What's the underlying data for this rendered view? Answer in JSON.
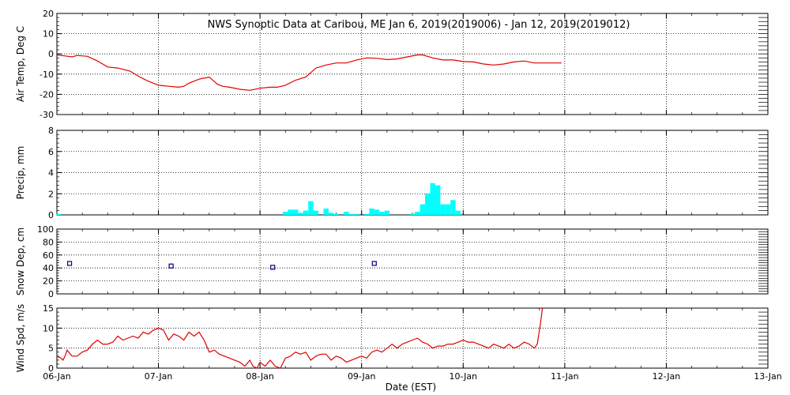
{
  "title": "NWS Synoptic Data at Caribou, ME   Jan  6, 2019(2019006) - Jan 12, 2019(2019012)",
  "xlabel": "Date (EST)",
  "colors": {
    "air_temp": "#e00000",
    "precip": "#00ffff",
    "snow": "#000080",
    "wind": "#e00000",
    "grid": "#000000"
  },
  "chart_data": [
    {
      "type": "line",
      "panel": "air_temp",
      "ylabel": "Air Temp, Deg C",
      "ylim": [
        -30,
        20
      ],
      "yticks": [
        20,
        10,
        0,
        -10,
        -20,
        -30
      ],
      "xlim": [
        0,
        7
      ],
      "xtick_labels": [
        "06-Jan",
        "07-Jan",
        "08-Jan",
        "09-Jan",
        "10-Jan",
        "11-Jan",
        "12-Jan",
        "13-Jan"
      ],
      "grid": true,
      "x": [
        0.0,
        0.08,
        0.15,
        0.2,
        0.3,
        0.4,
        0.5,
        0.6,
        0.72,
        0.82,
        0.9,
        1.0,
        1.1,
        1.2,
        1.25,
        1.3,
        1.4,
        1.5,
        1.58,
        1.63,
        1.7,
        1.8,
        1.9,
        2.0,
        2.1,
        2.17,
        2.25,
        2.35,
        2.45,
        2.55,
        2.65,
        2.75,
        2.85,
        2.95,
        3.05,
        3.15,
        3.25,
        3.35,
        3.45,
        3.55,
        3.6,
        3.7,
        3.8,
        3.9,
        4.0,
        4.1,
        4.2,
        4.3,
        4.4,
        4.5,
        4.6,
        4.7,
        4.8,
        4.9,
        4.97
      ],
      "values": [
        -0.5,
        -1.0,
        -1.5,
        -0.8,
        -1.2,
        -3.5,
        -6.5,
        -7.0,
        -8.5,
        -11.5,
        -13.5,
        -15.5,
        -16.0,
        -16.5,
        -16.0,
        -14.5,
        -12.5,
        -11.5,
        -15.0,
        -16.0,
        -16.5,
        -17.5,
        -18.0,
        -17.0,
        -16.5,
        -16.5,
        -15.5,
        -13.0,
        -11.5,
        -7.0,
        -5.5,
        -4.5,
        -4.5,
        -3.0,
        -2.0,
        -2.2,
        -2.8,
        -2.5,
        -1.5,
        -0.5,
        -0.5,
        -2.0,
        -3.0,
        -3.0,
        -3.8,
        -4.0,
        -5.0,
        -5.5,
        -5.0,
        -4.0,
        -3.5,
        -4.5,
        -4.5,
        -4.5,
        -4.5
      ]
    },
    {
      "type": "bar",
      "panel": "precip",
      "ylabel": "Precip, mm",
      "ylim": [
        0,
        8
      ],
      "yticks": [
        8,
        6,
        4,
        2,
        0
      ],
      "xlim": [
        0,
        7
      ],
      "grid": true,
      "x": [
        0.02,
        2.25,
        2.3,
        2.35,
        2.4,
        2.45,
        2.5,
        2.55,
        2.6,
        2.65,
        2.7,
        2.75,
        2.85,
        2.9,
        2.95,
        3.05,
        3.1,
        3.15,
        3.2,
        3.25,
        3.5,
        3.55,
        3.6,
        3.65,
        3.7,
        3.75,
        3.8,
        3.85,
        3.9,
        3.95
      ],
      "values": [
        0.1,
        0.3,
        0.5,
        0.5,
        0.2,
        0.4,
        1.3,
        0.4,
        0.0,
        0.6,
        0.2,
        0.1,
        0.3,
        0.1,
        0.1,
        0.1,
        0.6,
        0.5,
        0.3,
        0.4,
        0.1,
        0.3,
        1.0,
        2.0,
        3.0,
        2.8,
        1.0,
        1.0,
        1.4,
        0.4
      ]
    },
    {
      "type": "scatter",
      "panel": "snow_depth",
      "ylabel": "Snow Dep, cm",
      "ylim": [
        0,
        100
      ],
      "yticks": [
        100,
        80,
        60,
        40,
        20,
        0
      ],
      "xlim": [
        0,
        7
      ],
      "grid": true,
      "x": [
        0.125,
        1.125,
        2.125,
        3.125
      ],
      "values": [
        47,
        43,
        41,
        47
      ]
    },
    {
      "type": "line",
      "panel": "wind",
      "ylabel": "Wind Spd, m/s",
      "ylim": [
        0,
        15
      ],
      "yticks": [
        15,
        10,
        5,
        0
      ],
      "xlim": [
        0,
        7
      ],
      "grid": true,
      "x": [
        0.0,
        0.04,
        0.06,
        0.08,
        0.1,
        0.15,
        0.2,
        0.25,
        0.3,
        0.35,
        0.4,
        0.45,
        0.5,
        0.55,
        0.6,
        0.65,
        0.7,
        0.75,
        0.8,
        0.85,
        0.9,
        0.95,
        1.0,
        1.05,
        1.1,
        1.15,
        1.2,
        1.25,
        1.3,
        1.35,
        1.4,
        1.45,
        1.5,
        1.55,
        1.6,
        1.65,
        1.7,
        1.75,
        1.8,
        1.85,
        1.9,
        1.93,
        1.97,
        2.0,
        2.05,
        2.1,
        2.15,
        2.2,
        2.25,
        2.3,
        2.35,
        2.4,
        2.45,
        2.5,
        2.55,
        2.6,
        2.65,
        2.7,
        2.75,
        2.8,
        2.85,
        2.9,
        2.95,
        3.0,
        3.05,
        3.1,
        3.15,
        3.2,
        3.25,
        3.3,
        3.35,
        3.4,
        3.45,
        3.5,
        3.55,
        3.6,
        3.65,
        3.7,
        3.75,
        3.8,
        3.85,
        3.9,
        3.95,
        4.0,
        4.05,
        4.1,
        4.15,
        4.2,
        4.25,
        4.3,
        4.35,
        4.4,
        4.45,
        4.5,
        4.55,
        4.6,
        4.65,
        4.7,
        4.73,
        4.76,
        4.78
      ],
      "values": [
        3,
        2.5,
        2,
        3,
        4.5,
        3,
        3,
        4,
        4.5,
        6,
        7,
        6,
        6,
        6.5,
        8,
        7,
        7.5,
        8,
        7.5,
        9,
        8.5,
        9.5,
        10,
        9.5,
        7,
        8.5,
        8,
        7,
        9,
        8,
        9,
        7,
        4,
        4.5,
        3.5,
        3,
        2.5,
        2,
        1.5,
        0.5,
        2,
        0.5,
        0,
        1.5,
        0.5,
        2,
        0.5,
        0,
        2.5,
        3,
        4,
        3.5,
        4,
        2,
        3,
        3.5,
        3.5,
        2,
        3,
        2.5,
        1.5,
        2,
        2.5,
        3,
        2.5,
        4,
        4.5,
        4,
        5,
        6,
        5,
        6,
        6.5,
        7,
        7.5,
        6.5,
        6,
        5,
        5.5,
        5.5,
        6,
        6,
        6.5,
        7,
        6.5,
        6.5,
        6,
        5.5,
        5,
        6,
        5.5,
        5,
        6,
        5,
        5.5,
        6.5,
        6,
        5,
        6,
        11,
        15
      ]
    }
  ]
}
